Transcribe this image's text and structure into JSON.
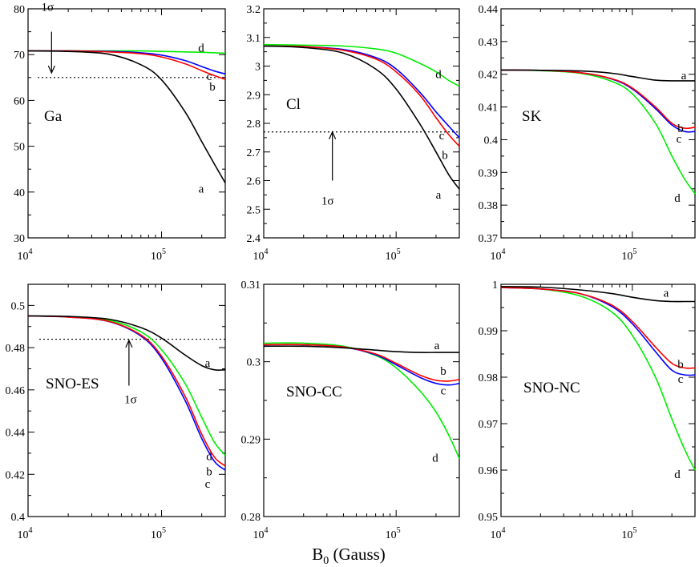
{
  "figure": {
    "xlabel_main": "B",
    "xlabel_sub": "0",
    "xlabel_units": " (Gauss)",
    "colors": {
      "a": "#000000",
      "b": "#ff0000",
      "c": "#0000ff",
      "d": "#00ee00"
    }
  },
  "chart_data": [
    {
      "type": "line",
      "title": "Ga",
      "xscale": "log",
      "xlim": [
        10000,
        300000
      ],
      "x_ticks": [
        {
          "base": "10",
          "exp": "4"
        },
        {
          "base": "10",
          "exp": "5"
        }
      ],
      "ylim": [
        30,
        80
      ],
      "y_ticks": [
        "30",
        "40",
        "50",
        "60",
        "70",
        "80"
      ],
      "reference": {
        "y": 65,
        "sigma_label": "1σ",
        "arrow_x": 15000,
        "arrow_from": 75,
        "arrow_to": 66
      },
      "label_order": [
        "d",
        "c",
        "b",
        "a"
      ],
      "series": [
        {
          "name": "a",
          "x": [
            10000,
            20000,
            40000,
            70000,
            100000,
            150000,
            200000,
            250000,
            300000
          ],
          "y": [
            70.8,
            70.7,
            70.1,
            67.8,
            64.5,
            57.5,
            51.0,
            46.0,
            42.0
          ]
        },
        {
          "name": "b",
          "x": [
            10000,
            20000,
            40000,
            70000,
            100000,
            150000,
            200000,
            250000,
            300000
          ],
          "y": [
            70.8,
            70.8,
            70.6,
            70.2,
            69.5,
            68.0,
            66.5,
            65.4,
            64.6
          ]
        },
        {
          "name": "c",
          "x": [
            10000,
            20000,
            40000,
            70000,
            100000,
            150000,
            200000,
            250000,
            300000
          ],
          "y": [
            70.8,
            70.8,
            70.7,
            70.4,
            69.9,
            68.7,
            67.4,
            66.4,
            65.8
          ]
        },
        {
          "name": "d",
          "x": [
            10000,
            20000,
            40000,
            70000,
            100000,
            150000,
            200000,
            250000,
            300000
          ],
          "y": [
            70.8,
            70.8,
            70.8,
            70.8,
            70.7,
            70.6,
            70.5,
            70.4,
            70.3
          ]
        }
      ]
    },
    {
      "type": "line",
      "title": "Cl",
      "xscale": "log",
      "xlim": [
        10000,
        300000
      ],
      "x_ticks": [
        {
          "base": "10",
          "exp": "4"
        },
        {
          "base": "10",
          "exp": "5"
        }
      ],
      "ylim": [
        2.4,
        3.2
      ],
      "y_ticks": [
        "2.4",
        "2.5",
        "2.6",
        "2.7",
        "2.8",
        "2.9",
        "3",
        "3.1",
        "3.2"
      ],
      "reference": {
        "y": 2.77,
        "sigma_label": "1σ",
        "arrow_x": 33000,
        "arrow_from": 2.6,
        "arrow_to": 2.77
      },
      "label_order": [
        "d",
        "c",
        "b",
        "a"
      ],
      "series": [
        {
          "name": "a",
          "x": [
            10000,
            20000,
            40000,
            70000,
            100000,
            150000,
            200000,
            250000,
            300000
          ],
          "y": [
            3.07,
            3.065,
            3.045,
            2.99,
            2.92,
            2.8,
            2.7,
            2.62,
            2.57
          ]
        },
        {
          "name": "b",
          "x": [
            10000,
            20000,
            40000,
            70000,
            100000,
            150000,
            200000,
            250000,
            300000
          ],
          "y": [
            3.07,
            3.068,
            3.055,
            3.025,
            2.98,
            2.9,
            2.82,
            2.76,
            2.72
          ]
        },
        {
          "name": "c",
          "x": [
            10000,
            20000,
            40000,
            70000,
            100000,
            150000,
            200000,
            250000,
            300000
          ],
          "y": [
            3.07,
            3.068,
            3.058,
            3.03,
            2.99,
            2.91,
            2.84,
            2.79,
            2.75
          ]
        },
        {
          "name": "d",
          "x": [
            10000,
            20000,
            40000,
            70000,
            100000,
            150000,
            200000,
            250000,
            300000
          ],
          "y": [
            3.075,
            3.073,
            3.07,
            3.06,
            3.045,
            3.01,
            2.98,
            2.95,
            2.93
          ]
        }
      ]
    },
    {
      "type": "line",
      "title": "SK",
      "xscale": "log",
      "xlim": [
        10000,
        300000
      ],
      "x_ticks": [
        {
          "base": "10",
          "exp": "4"
        },
        {
          "base": "10",
          "exp": "5"
        }
      ],
      "ylim": [
        0.37,
        0.44
      ],
      "y_ticks": [
        "0.37",
        "0.38",
        "0.39",
        "0.4",
        "0.41",
        "0.42",
        "0.43",
        "0.44"
      ],
      "reference": null,
      "label_order": [
        "a",
        "b",
        "c",
        "d"
      ],
      "series": [
        {
          "name": "a",
          "x": [
            10000,
            20000,
            40000,
            70000,
            100000,
            150000,
            200000,
            250000,
            300000
          ],
          "y": [
            0.4213,
            0.4212,
            0.421,
            0.4203,
            0.4193,
            0.4182,
            0.418,
            0.418,
            0.418
          ]
        },
        {
          "name": "b",
          "x": [
            10000,
            20000,
            40000,
            70000,
            100000,
            150000,
            200000,
            250000,
            300000
          ],
          "y": [
            0.4213,
            0.4212,
            0.4205,
            0.4186,
            0.4158,
            0.41,
            0.405,
            0.4035,
            0.4038
          ]
        },
        {
          "name": "c",
          "x": [
            10000,
            20000,
            40000,
            70000,
            100000,
            150000,
            200000,
            250000,
            300000
          ],
          "y": [
            0.4213,
            0.4212,
            0.4205,
            0.4185,
            0.4155,
            0.4095,
            0.4045,
            0.4025,
            0.4025
          ]
        },
        {
          "name": "d",
          "x": [
            10000,
            20000,
            40000,
            70000,
            100000,
            150000,
            200000,
            250000,
            300000
          ],
          "y": [
            0.4213,
            0.4211,
            0.4203,
            0.4178,
            0.414,
            0.405,
            0.395,
            0.388,
            0.3835
          ]
        }
      ]
    },
    {
      "type": "line",
      "title": "SNO-ES",
      "xscale": "log",
      "xlim": [
        10000,
        300000
      ],
      "x_ticks": [
        {
          "base": "10",
          "exp": "4"
        },
        {
          "base": "10",
          "exp": "5"
        }
      ],
      "ylim": [
        0.4,
        0.51
      ],
      "y_ticks": [
        "0.4",
        "0.42",
        "0.44",
        "0.46",
        "0.48",
        "0.5"
      ],
      "reference": {
        "y": 0.484,
        "sigma_label": "1σ",
        "arrow_x": 57000,
        "arrow_from": 0.462,
        "arrow_to": 0.4835
      },
      "label_order": [
        "a",
        "d",
        "b",
        "c"
      ],
      "series": [
        {
          "name": "a",
          "x": [
            10000,
            20000,
            40000,
            70000,
            100000,
            150000,
            200000,
            250000,
            300000
          ],
          "y": [
            0.495,
            0.4948,
            0.4935,
            0.4895,
            0.4845,
            0.4765,
            0.4715,
            0.4695,
            0.4695
          ]
        },
        {
          "name": "b",
          "x": [
            10000,
            20000,
            40000,
            70000,
            100000,
            150000,
            200000,
            250000,
            300000
          ],
          "y": [
            0.495,
            0.4945,
            0.4925,
            0.486,
            0.476,
            0.457,
            0.439,
            0.428,
            0.424
          ]
        },
        {
          "name": "c",
          "x": [
            10000,
            20000,
            40000,
            70000,
            100000,
            150000,
            200000,
            250000,
            300000
          ],
          "y": [
            0.495,
            0.4945,
            0.4924,
            0.4855,
            0.475,
            0.455,
            0.437,
            0.426,
            0.422
          ]
        },
        {
          "name": "d",
          "x": [
            10000,
            20000,
            40000,
            70000,
            100000,
            150000,
            200000,
            250000,
            300000
          ],
          "y": [
            0.495,
            0.4947,
            0.493,
            0.4875,
            0.479,
            0.463,
            0.447,
            0.435,
            0.429
          ]
        }
      ]
    },
    {
      "type": "line",
      "title": "SNO-CC",
      "xscale": "log",
      "xlim": [
        10000,
        300000
      ],
      "x_ticks": [
        {
          "base": "10",
          "exp": "4"
        },
        {
          "base": "10",
          "exp": "5"
        }
      ],
      "ylim": [
        0.28,
        0.31
      ],
      "y_ticks": [
        "0.28",
        "0.29",
        "0.3",
        "0.31"
      ],
      "reference": null,
      "label_order": [
        "a",
        "b",
        "c",
        "d"
      ],
      "series": [
        {
          "name": "a",
          "x": [
            10000,
            20000,
            40000,
            70000,
            100000,
            150000,
            200000,
            250000,
            300000
          ],
          "y": [
            0.302,
            0.302,
            0.3018,
            0.3015,
            0.3013,
            0.3012,
            0.3012,
            0.3012,
            0.3012
          ]
        },
        {
          "name": "b",
          "x": [
            10000,
            20000,
            40000,
            70000,
            100000,
            150000,
            200000,
            250000,
            300000
          ],
          "y": [
            0.3022,
            0.3022,
            0.3019,
            0.301,
            0.2998,
            0.2983,
            0.2976,
            0.2975,
            0.2977
          ]
        },
        {
          "name": "c",
          "x": [
            10000,
            20000,
            40000,
            70000,
            100000,
            150000,
            200000,
            250000,
            300000
          ],
          "y": [
            0.3022,
            0.3022,
            0.3019,
            0.3009,
            0.2996,
            0.298,
            0.2972,
            0.297,
            0.2972
          ]
        },
        {
          "name": "d",
          "x": [
            10000,
            20000,
            40000,
            70000,
            100000,
            150000,
            200000,
            250000,
            300000
          ],
          "y": [
            0.3024,
            0.3024,
            0.302,
            0.3008,
            0.2992,
            0.2963,
            0.2935,
            0.2905,
            0.2875
          ]
        }
      ]
    },
    {
      "type": "line",
      "title": "SNO-NC",
      "xscale": "log",
      "xlim": [
        10000,
        300000
      ],
      "x_ticks": [
        {
          "base": "10",
          "exp": "4"
        },
        {
          "base": "10",
          "exp": "5"
        }
      ],
      "ylim": [
        0.95,
        1.0
      ],
      "y_ticks": [
        "0.95",
        "0.96",
        "0.97",
        "0.98",
        "0.99",
        "1"
      ],
      "reference": null,
      "label_order": [
        "a",
        "b",
        "c",
        "d"
      ],
      "series": [
        {
          "name": "a",
          "x": [
            10000,
            20000,
            40000,
            70000,
            100000,
            150000,
            200000,
            250000,
            300000
          ],
          "y": [
            0.9995,
            0.9994,
            0.9988,
            0.998,
            0.9972,
            0.9965,
            0.9963,
            0.9963,
            0.9963
          ]
        },
        {
          "name": "b",
          "x": [
            10000,
            20000,
            40000,
            70000,
            100000,
            150000,
            200000,
            250000,
            300000
          ],
          "y": [
            0.9993,
            0.999,
            0.998,
            0.9955,
            0.992,
            0.9865,
            0.983,
            0.982,
            0.982
          ]
        },
        {
          "name": "c",
          "x": [
            10000,
            20000,
            40000,
            70000,
            100000,
            150000,
            200000,
            250000,
            300000
          ],
          "y": [
            0.9993,
            0.999,
            0.998,
            0.9952,
            0.9915,
            0.9855,
            0.9815,
            0.9805,
            0.9805
          ]
        },
        {
          "name": "d",
          "x": [
            10000,
            20000,
            40000,
            70000,
            100000,
            150000,
            200000,
            250000,
            300000
          ],
          "y": [
            0.9995,
            0.999,
            0.9975,
            0.994,
            0.989,
            0.98,
            0.971,
            0.9645,
            0.96
          ]
        }
      ]
    }
  ]
}
